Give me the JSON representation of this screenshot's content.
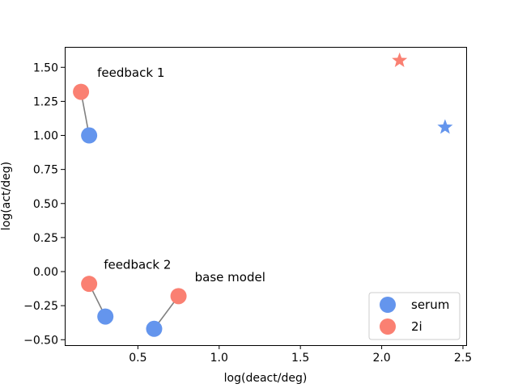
{
  "chart_data": {
    "type": "scatter",
    "xlabel": "log(deact/deg)",
    "ylabel": "log(act/deg)",
    "xlim": [
      0.05,
      2.52
    ],
    "ylim": [
      -0.54,
      1.65
    ],
    "xticks": [
      0.5,
      1.0,
      1.5,
      2.0,
      2.5
    ],
    "xtick_labels": [
      "0.5",
      "1.0",
      "1.5",
      "2.0",
      "2.5"
    ],
    "yticks": [
      -0.5,
      -0.25,
      0.0,
      0.25,
      0.5,
      0.75,
      1.0,
      1.25,
      1.5
    ],
    "ytick_labels": [
      "−0.50",
      "−0.25",
      "0.00",
      "0.25",
      "0.50",
      "0.75",
      "1.00",
      "1.25",
      "1.50"
    ],
    "grid": false,
    "legend": {
      "placement": "lower-right",
      "entries": [
        {
          "label": "serum",
          "color": "#6495ED",
          "marker": "circle"
        },
        {
          "label": "2i",
          "color": "#FA8072",
          "marker": "circle"
        }
      ]
    },
    "series": [
      {
        "name": "serum",
        "color": "#6495ED",
        "marker": "circle",
        "points": [
          {
            "x": 0.2,
            "y": 1.0
          },
          {
            "x": 0.3,
            "y": -0.33
          },
          {
            "x": 0.6,
            "y": -0.42
          }
        ]
      },
      {
        "name": "2i",
        "color": "#FA8072",
        "marker": "circle",
        "points": [
          {
            "x": 0.15,
            "y": 1.32
          },
          {
            "x": 0.2,
            "y": -0.09
          },
          {
            "x": 0.75,
            "y": -0.18
          }
        ]
      }
    ],
    "stars": [
      {
        "x": 2.11,
        "y": 1.55,
        "color": "#FA8072",
        "marker": "star"
      },
      {
        "x": 2.39,
        "y": 1.06,
        "color": "#6495ED",
        "marker": "star"
      }
    ],
    "connectors": [
      {
        "from": {
          "x": 0.15,
          "y": 1.32
        },
        "to": {
          "x": 0.2,
          "y": 1.0
        },
        "color": "#808080"
      },
      {
        "from": {
          "x": 0.2,
          "y": -0.09
        },
        "to": {
          "x": 0.3,
          "y": -0.33
        },
        "color": "#808080"
      },
      {
        "from": {
          "x": 0.75,
          "y": -0.18
        },
        "to": {
          "x": 0.6,
          "y": -0.42
        },
        "color": "#808080"
      }
    ],
    "annotations": [
      {
        "text": "feedback 1",
        "x": 0.25,
        "y": 1.43
      },
      {
        "text": "feedback 2",
        "x": 0.29,
        "y": 0.02
      },
      {
        "text": "base model",
        "x": 0.85,
        "y": -0.07
      }
    ]
  }
}
